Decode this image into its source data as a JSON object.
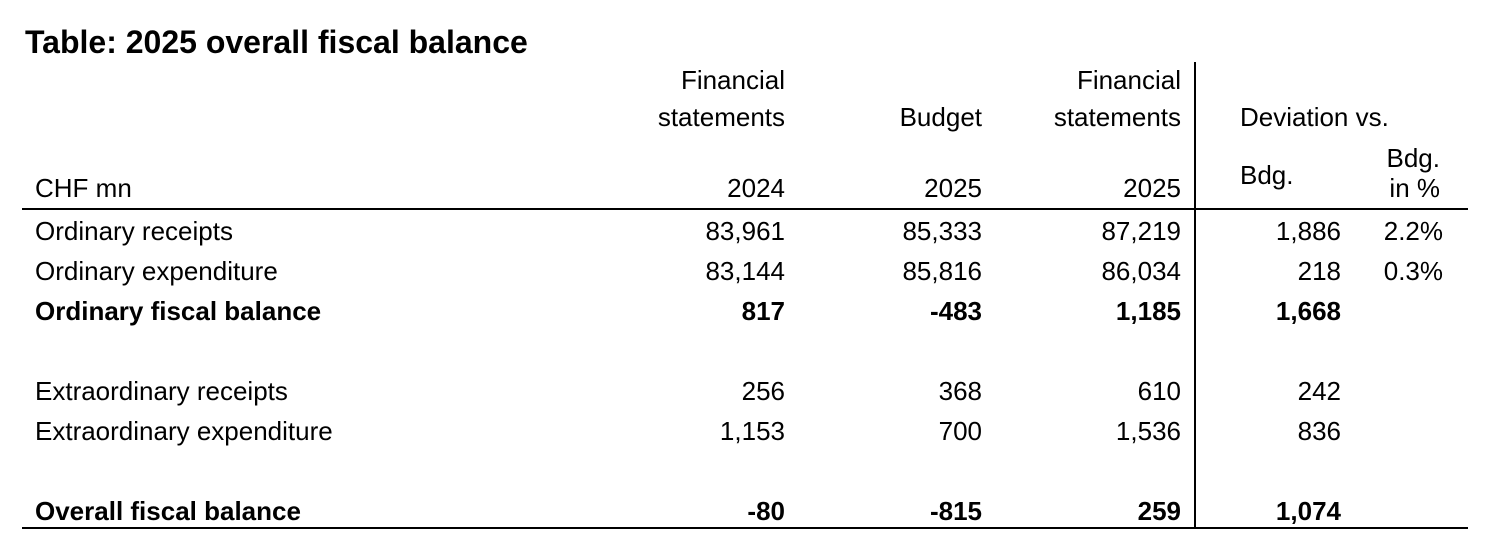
{
  "title": "Table: 2025 overall fiscal balance",
  "header": {
    "unit": "CHF mn",
    "columns": [
      {
        "label": [
          "Financial",
          "statements"
        ],
        "year": "2024"
      },
      {
        "label": [
          "Budget"
        ],
        "year": "2025"
      },
      {
        "label": [
          "Financial",
          "statements"
        ],
        "year": "2025"
      }
    ],
    "deviation": "Deviation vs.",
    "dev_abs": "Bdg.",
    "dev_pct": [
      "Bdg.",
      "in %"
    ]
  },
  "rows": [
    {
      "label": "Ordinary receipts",
      "bold": false,
      "values": [
        "83,961",
        "85,333",
        "87,219",
        "1,886",
        "2.2%"
      ]
    },
    {
      "label": "Ordinary expenditure",
      "bold": false,
      "values": [
        "83,144",
        "85,816",
        "86,034",
        "218",
        "0.3%"
      ]
    },
    {
      "label": "Ordinary fiscal balance",
      "bold": true,
      "values": [
        "817",
        "-483",
        "1,185",
        "1,668"
      ]
    },
    {
      "label": "Extraordinary receipts",
      "bold": false,
      "values": [
        "256",
        "368",
        "610",
        "242"
      ]
    },
    {
      "label": "Extraordinary expenditure",
      "bold": false,
      "values": [
        "1,153",
        "700",
        "1,536",
        "836"
      ]
    },
    {
      "label": "Overall fiscal balance",
      "bold": true,
      "values": [
        "-80",
        "-815",
        "259",
        "1,074"
      ]
    }
  ]
}
